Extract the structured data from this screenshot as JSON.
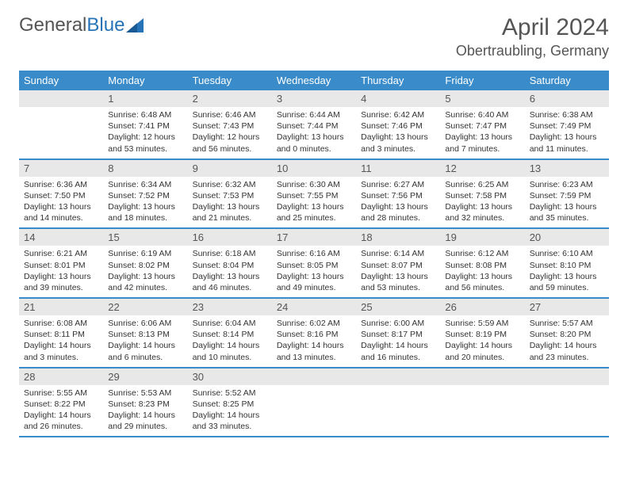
{
  "brand": {
    "part1": "General",
    "part2": "Blue"
  },
  "title": {
    "month": "April 2024",
    "location": "Obertraubling, Germany"
  },
  "colors": {
    "header_bg": "#3a8bc9",
    "header_text": "#ffffff",
    "daynum_bg": "#e8e8e8",
    "text": "#333333",
    "rule": "#3a8bc9",
    "brand_blue": "#2773b8"
  },
  "dow": [
    "Sunday",
    "Monday",
    "Tuesday",
    "Wednesday",
    "Thursday",
    "Friday",
    "Saturday"
  ],
  "weeks": [
    [
      {
        "n": "",
        "sr": "",
        "ss": "",
        "dl": ""
      },
      {
        "n": "1",
        "sr": "6:48 AM",
        "ss": "7:41 PM",
        "dl": "12 hours and 53 minutes."
      },
      {
        "n": "2",
        "sr": "6:46 AM",
        "ss": "7:43 PM",
        "dl": "12 hours and 56 minutes."
      },
      {
        "n": "3",
        "sr": "6:44 AM",
        "ss": "7:44 PM",
        "dl": "13 hours and 0 minutes."
      },
      {
        "n": "4",
        "sr": "6:42 AM",
        "ss": "7:46 PM",
        "dl": "13 hours and 3 minutes."
      },
      {
        "n": "5",
        "sr": "6:40 AM",
        "ss": "7:47 PM",
        "dl": "13 hours and 7 minutes."
      },
      {
        "n": "6",
        "sr": "6:38 AM",
        "ss": "7:49 PM",
        "dl": "13 hours and 11 minutes."
      }
    ],
    [
      {
        "n": "7",
        "sr": "6:36 AM",
        "ss": "7:50 PM",
        "dl": "13 hours and 14 minutes."
      },
      {
        "n": "8",
        "sr": "6:34 AM",
        "ss": "7:52 PM",
        "dl": "13 hours and 18 minutes."
      },
      {
        "n": "9",
        "sr": "6:32 AM",
        "ss": "7:53 PM",
        "dl": "13 hours and 21 minutes."
      },
      {
        "n": "10",
        "sr": "6:30 AM",
        "ss": "7:55 PM",
        "dl": "13 hours and 25 minutes."
      },
      {
        "n": "11",
        "sr": "6:27 AM",
        "ss": "7:56 PM",
        "dl": "13 hours and 28 minutes."
      },
      {
        "n": "12",
        "sr": "6:25 AM",
        "ss": "7:58 PM",
        "dl": "13 hours and 32 minutes."
      },
      {
        "n": "13",
        "sr": "6:23 AM",
        "ss": "7:59 PM",
        "dl": "13 hours and 35 minutes."
      }
    ],
    [
      {
        "n": "14",
        "sr": "6:21 AM",
        "ss": "8:01 PM",
        "dl": "13 hours and 39 minutes."
      },
      {
        "n": "15",
        "sr": "6:19 AM",
        "ss": "8:02 PM",
        "dl": "13 hours and 42 minutes."
      },
      {
        "n": "16",
        "sr": "6:18 AM",
        "ss": "8:04 PM",
        "dl": "13 hours and 46 minutes."
      },
      {
        "n": "17",
        "sr": "6:16 AM",
        "ss": "8:05 PM",
        "dl": "13 hours and 49 minutes."
      },
      {
        "n": "18",
        "sr": "6:14 AM",
        "ss": "8:07 PM",
        "dl": "13 hours and 53 minutes."
      },
      {
        "n": "19",
        "sr": "6:12 AM",
        "ss": "8:08 PM",
        "dl": "13 hours and 56 minutes."
      },
      {
        "n": "20",
        "sr": "6:10 AM",
        "ss": "8:10 PM",
        "dl": "13 hours and 59 minutes."
      }
    ],
    [
      {
        "n": "21",
        "sr": "6:08 AM",
        "ss": "8:11 PM",
        "dl": "14 hours and 3 minutes."
      },
      {
        "n": "22",
        "sr": "6:06 AM",
        "ss": "8:13 PM",
        "dl": "14 hours and 6 minutes."
      },
      {
        "n": "23",
        "sr": "6:04 AM",
        "ss": "8:14 PM",
        "dl": "14 hours and 10 minutes."
      },
      {
        "n": "24",
        "sr": "6:02 AM",
        "ss": "8:16 PM",
        "dl": "14 hours and 13 minutes."
      },
      {
        "n": "25",
        "sr": "6:00 AM",
        "ss": "8:17 PM",
        "dl": "14 hours and 16 minutes."
      },
      {
        "n": "26",
        "sr": "5:59 AM",
        "ss": "8:19 PM",
        "dl": "14 hours and 20 minutes."
      },
      {
        "n": "27",
        "sr": "5:57 AM",
        "ss": "8:20 PM",
        "dl": "14 hours and 23 minutes."
      }
    ],
    [
      {
        "n": "28",
        "sr": "5:55 AM",
        "ss": "8:22 PM",
        "dl": "14 hours and 26 minutes."
      },
      {
        "n": "29",
        "sr": "5:53 AM",
        "ss": "8:23 PM",
        "dl": "14 hours and 29 minutes."
      },
      {
        "n": "30",
        "sr": "5:52 AM",
        "ss": "8:25 PM",
        "dl": "14 hours and 33 minutes."
      },
      {
        "n": "",
        "sr": "",
        "ss": "",
        "dl": ""
      },
      {
        "n": "",
        "sr": "",
        "ss": "",
        "dl": ""
      },
      {
        "n": "",
        "sr": "",
        "ss": "",
        "dl": ""
      },
      {
        "n": "",
        "sr": "",
        "ss": "",
        "dl": ""
      }
    ]
  ],
  "labels": {
    "sunrise": "Sunrise: ",
    "sunset": "Sunset: ",
    "daylight": "Daylight: "
  }
}
